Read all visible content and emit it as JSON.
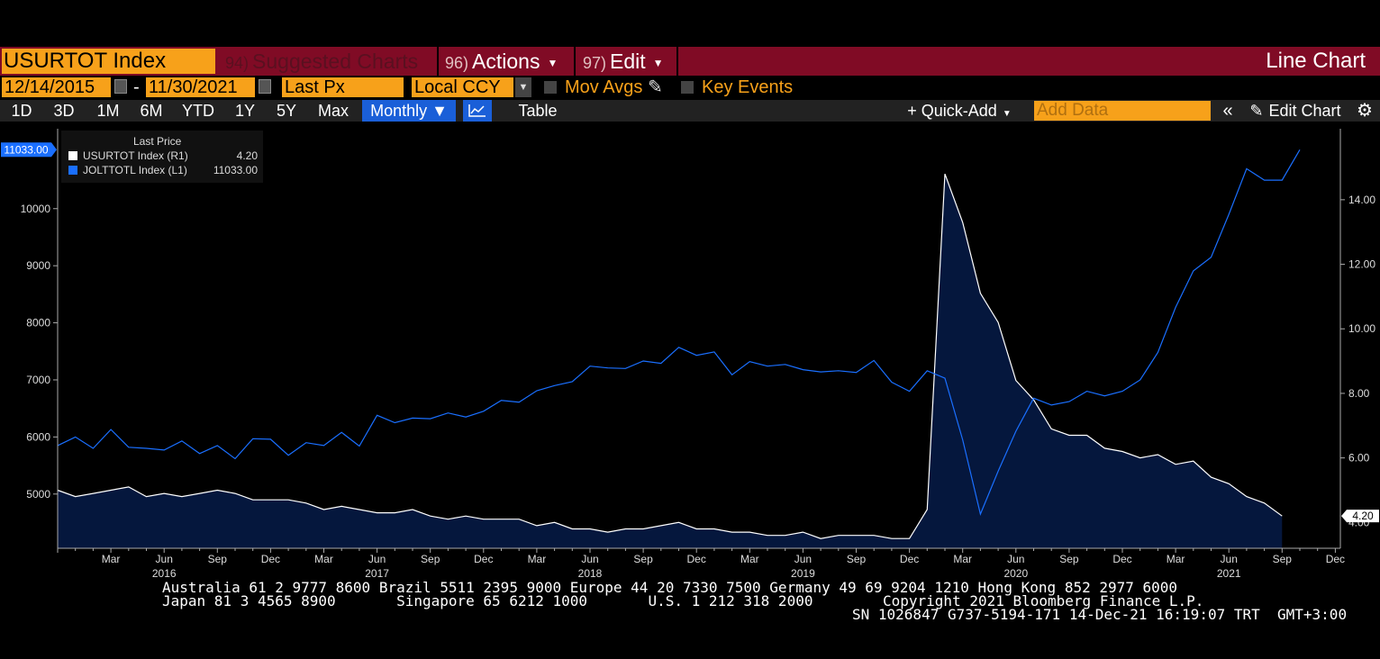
{
  "header": {
    "ticker": "USURTOT Index",
    "menus": [
      {
        "num": "94)",
        "label": "Suggested Charts"
      },
      {
        "num": "96)",
        "label": "Actions"
      },
      {
        "num": "97)",
        "label": "Edit"
      }
    ],
    "chart_type": "Line Chart"
  },
  "controls": {
    "start_date": "12/14/2015",
    "end_date": "11/30/2021",
    "date_sep": "-",
    "field": "Last Px",
    "currency": "Local CCY",
    "mov_avgs": "Mov Avgs",
    "key_events": "Key Events"
  },
  "toolbar": {
    "periods": [
      "1D",
      "3D",
      "1M",
      "6M",
      "YTD",
      "1Y",
      "5Y",
      "Max"
    ],
    "frequency": "Monthly ▼",
    "table": "Table",
    "quick_add": "+ Quick-Add",
    "add_data_placeholder": "Add Data",
    "edit_chart": "Edit Chart"
  },
  "legend": {
    "header": "Last Price",
    "items": [
      {
        "name": "USURTOT Index  (R1)",
        "value": "4.20",
        "color": "#ffffff"
      },
      {
        "name": "JOLTTOTL Index  (L1)",
        "value": "11033.00",
        "color": "#1a6fff"
      }
    ]
  },
  "chart_data": {
    "type": "line",
    "x_start": "2015-12",
    "x_frequency": "monthly",
    "left_axis": {
      "ticks": [
        "5000",
        "6000",
        "7000",
        "8000",
        "9000",
        "10000"
      ],
      "range": [
        4050,
        11400
      ],
      "last_value_label": "11033.00"
    },
    "right_axis": {
      "ticks": [
        "6.00",
        "8.00",
        "10.00",
        "12.00",
        "14.00"
      ],
      "range": [
        3.2,
        16.2
      ],
      "partial_tick": "4.00",
      "last_value_label": "4.20"
    },
    "x_month_labels": [
      "Mar",
      "Jun",
      "Sep",
      "Dec",
      "Mar",
      "Jun",
      "Sep",
      "Dec",
      "Mar",
      "Jun",
      "Sep",
      "Dec",
      "Mar",
      "Jun",
      "Sep",
      "Dec",
      "Mar",
      "Jun",
      "Sep",
      "Dec",
      "Mar",
      "Jun",
      "Sep",
      "Dec"
    ],
    "x_year_labels": [
      "2016",
      "2017",
      "2018",
      "2019",
      "2020",
      "2021"
    ],
    "series": [
      {
        "name": "USURTOT Index",
        "axis": "right",
        "color": "#ffffff",
        "fill": "#05173d",
        "values": [
          5.0,
          4.8,
          4.9,
          5.0,
          5.1,
          4.8,
          4.9,
          4.8,
          4.9,
          5.0,
          4.9,
          4.7,
          4.7,
          4.7,
          4.6,
          4.4,
          4.5,
          4.4,
          4.3,
          4.3,
          4.4,
          4.2,
          4.1,
          4.2,
          4.1,
          4.1,
          4.1,
          3.9,
          4.0,
          3.8,
          3.8,
          3.7,
          3.8,
          3.8,
          3.9,
          4.0,
          3.8,
          3.8,
          3.7,
          3.7,
          3.6,
          3.6,
          3.7,
          3.5,
          3.6,
          3.6,
          3.6,
          3.5,
          3.5,
          4.4,
          14.8,
          13.3,
          11.1,
          10.2,
          8.4,
          7.8,
          6.9,
          6.7,
          6.7,
          6.3,
          6.2,
          6.0,
          6.1,
          5.8,
          5.9,
          5.4,
          5.2,
          4.8,
          4.6,
          4.2
        ]
      },
      {
        "name": "JOLTTOTL Index",
        "axis": "left",
        "color": "#1a6fff",
        "values": [
          5850,
          6000,
          5800,
          6130,
          5820,
          5800,
          5770,
          5930,
          5710,
          5850,
          5620,
          5970,
          5960,
          5680,
          5900,
          5850,
          6080,
          5840,
          6380,
          6250,
          6330,
          6320,
          6420,
          6350,
          6450,
          6640,
          6610,
          6810,
          6900,
          6970,
          7240,
          7210,
          7200,
          7330,
          7290,
          7570,
          7430,
          7490,
          7090,
          7320,
          7240,
          7270,
          7180,
          7140,
          7160,
          7130,
          7340,
          6960,
          6800,
          7160,
          7030,
          5950,
          4650,
          5400,
          6100,
          6680,
          6560,
          6620,
          6800,
          6720,
          6800,
          7000,
          7480,
          8270,
          8910,
          9150,
          9900,
          10700,
          10500,
          10500,
          11033
        ]
      }
    ]
  },
  "footer": {
    "line1": "Australia 61 2 9777 8600 Brazil 5511 2395 9000 Europe 44 20 7330 7500 Germany 49 69 9204 1210 Hong Kong 852 2977 6000",
    "line2a": "Japan 81 3 4565 8900       Singapore 65 6212 1000       U.S. 1 212 318 2000",
    "line2b": "Copyright 2021 Bloomberg Finance L.P.",
    "line3": "SN 1026847 G737-5194-171 14-Dec-21 16:19:07 TRT  GMT+3:00"
  }
}
